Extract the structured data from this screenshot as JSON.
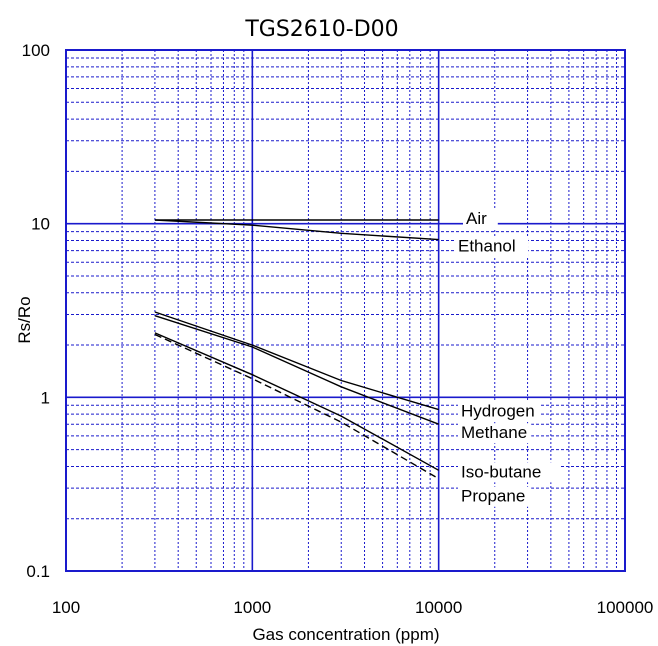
{
  "chart_data": {
    "type": "line",
    "title": "TGS2610-D00",
    "xlabel": "Gas concentration (ppm)",
    "ylabel": "Rs/Ro",
    "xscale": "log",
    "yscale": "log",
    "xlim": [
      100,
      100000
    ],
    "ylim": [
      0.1,
      100
    ],
    "xticks": [
      "100",
      "1000",
      "10000",
      "100000"
    ],
    "yticks": [
      "0.1",
      "1",
      "10",
      "100"
    ],
    "grid": true,
    "grid_color": "#1a1acc",
    "legend": "inline labels right of curves",
    "series": [
      {
        "name": "Air",
        "style": "solid",
        "x": [
          300,
          10000
        ],
        "y": [
          10.5,
          10.5
        ]
      },
      {
        "name": "Ethanol",
        "style": "solid",
        "x": [
          300,
          1000,
          3000,
          10000
        ],
        "y": [
          10.5,
          9.8,
          8.8,
          8.1
        ]
      },
      {
        "name": "Hydrogen",
        "style": "solid",
        "x": [
          300,
          1000,
          3000,
          10000
        ],
        "y": [
          3.1,
          2.0,
          1.25,
          0.85
        ]
      },
      {
        "name": "Methane",
        "style": "solid",
        "x": [
          300,
          1000,
          3000,
          10000
        ],
        "y": [
          2.95,
          1.95,
          1.15,
          0.7
        ]
      },
      {
        "name": "Iso-butane",
        "style": "solid",
        "x": [
          300,
          1000,
          3000,
          10000
        ],
        "y": [
          2.35,
          1.35,
          0.78,
          0.38
        ]
      },
      {
        "name": "Propane",
        "style": "dashed",
        "x": [
          300,
          1000,
          3000,
          10000
        ],
        "y": [
          2.3,
          1.28,
          0.72,
          0.34
        ]
      }
    ]
  }
}
